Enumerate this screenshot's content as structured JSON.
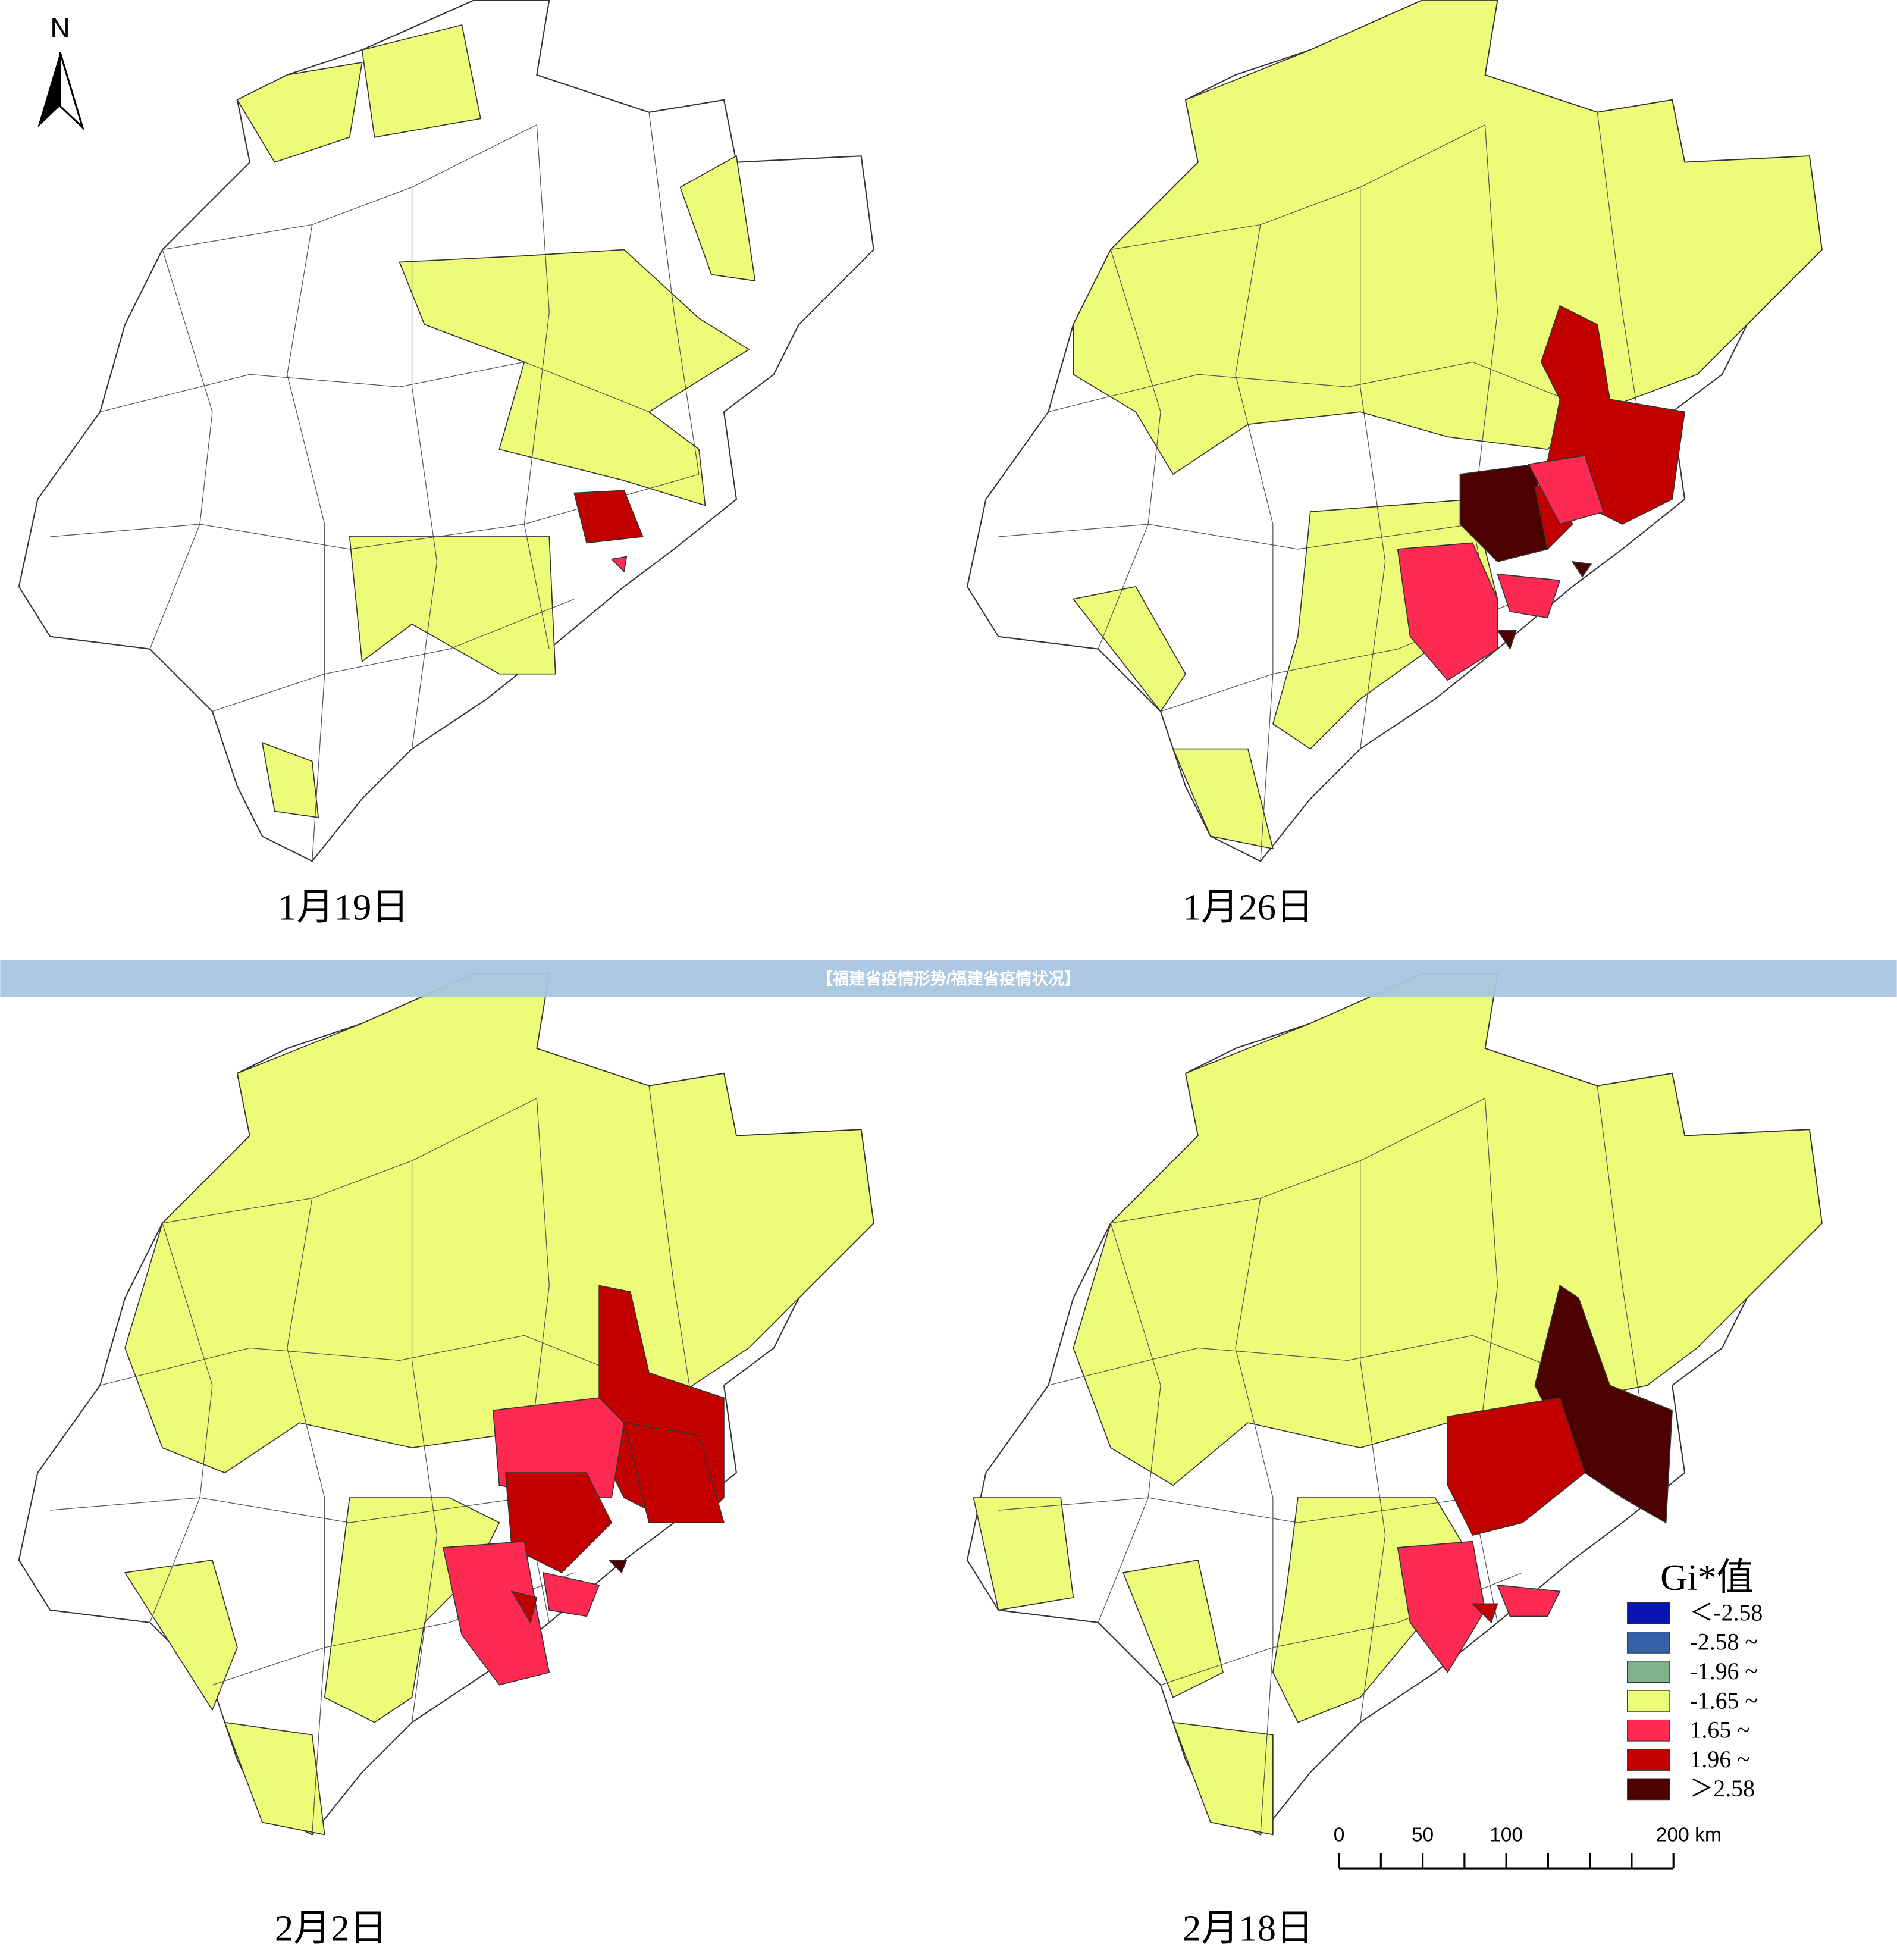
{
  "north": "N",
  "banner": "【福建省疫情形势/福建省疫情状况】",
  "panels": [
    {
      "date": "1月19日"
    },
    {
      "date": "1月26日"
    },
    {
      "date": "2月2日"
    },
    {
      "date": "2月18日"
    }
  ],
  "legend": {
    "title": "Gi*值",
    "items": [
      {
        "label": "＜-2.58",
        "color": "#0a14b4"
      },
      {
        "label": "-2.58 ~",
        "color": "#3660a8"
      },
      {
        "label": "-1.96 ~",
        "color": "#7fb28a"
      },
      {
        "label": "-1.65 ~",
        "color": "#ecfc78"
      },
      {
        "label": "1.65 ~",
        "color": "#ff2a52"
      },
      {
        "label": "1.96 ~",
        "color": "#c20000"
      },
      {
        "label": "＞2.58",
        "color": "#4c0000"
      }
    ]
  },
  "scale_bar": {
    "labels": [
      "0",
      "50",
      "100",
      "200 km"
    ]
  }
}
